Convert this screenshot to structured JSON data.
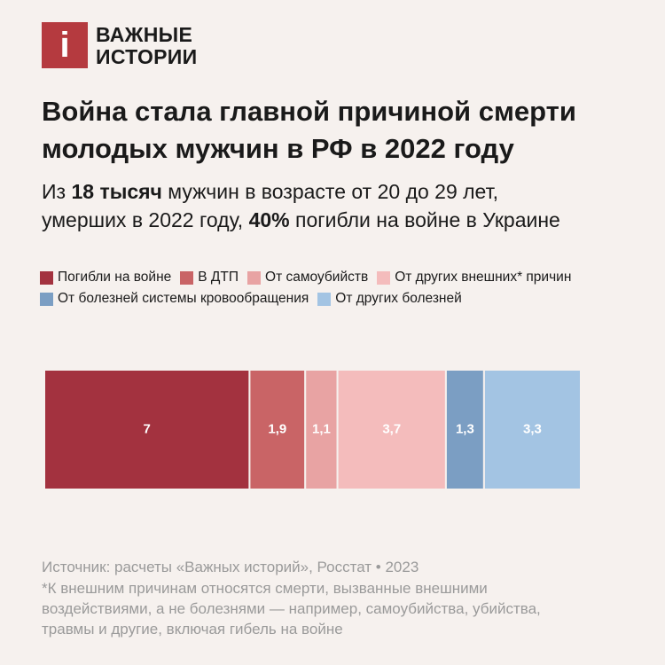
{
  "logo": {
    "mark": "i",
    "name_lines": [
      "ВАЖНЫЕ",
      "ИСТОРИИ"
    ]
  },
  "chart_data": {
    "type": "stacked-bar",
    "title_lines": [
      "Война стала главной причиной смерти",
      "молодых мужчин в РФ в 2022 году"
    ],
    "subtitle_lines": [
      [
        {
          "text": "Из ",
          "bold": false
        },
        {
          "text": "18 тысяч",
          "bold": true
        },
        {
          "text": " мужчин в возрасте от 20 до 29 лет,",
          "bold": false
        }
      ],
      [
        {
          "text": "умерших в 2022 году, ",
          "bold": false
        },
        {
          "text": "40%",
          "bold": true
        },
        {
          "text": " погибли на войне в Украине",
          "bold": false
        }
      ]
    ],
    "series": [
      {
        "name": "Погибли на войне",
        "color": "#a3323f",
        "values": [
          7
        ]
      },
      {
        "name": "В ДТП",
        "color": "#c96466",
        "values": [
          1.9
        ],
        "value_labels": [
          "1,9"
        ]
      },
      {
        "name": "От самоубийств",
        "color": "#e8a3a3",
        "values": [
          1.1
        ],
        "value_labels": [
          "1,1"
        ]
      },
      {
        "name": "От других внешних* причин",
        "color": "#f4bcbc",
        "values": [
          3.7
        ],
        "value_labels": [
          "3,7"
        ]
      },
      {
        "name": "От болезней системы кровообращения",
        "color": "#7b9ec3",
        "values": [
          1.3
        ],
        "value_labels": [
          "1,3"
        ]
      },
      {
        "name": "От других болезней",
        "color": "#a3c4e3",
        "values": [
          3.3
        ],
        "value_labels": [
          "3,3"
        ]
      }
    ],
    "source": "Источник: расчеты «Важных историй», Росстат • 2023",
    "note": "*К внешним причинам относятся смерти, вызванные внешними воздействиями, а не болезнями — например, самоубийства, убийства, травмы и другие, включая гибель на войне"
  }
}
